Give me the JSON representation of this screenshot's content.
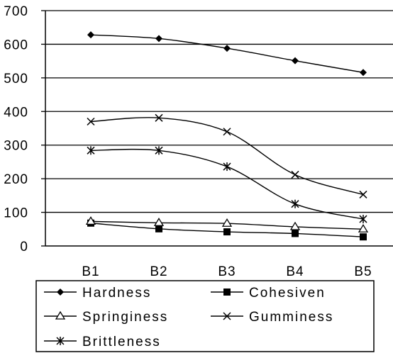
{
  "chart_data": {
    "type": "line",
    "title": "",
    "xlabel": "",
    "ylabel": "",
    "categories": [
      "B1",
      "B2",
      "B3",
      "B4",
      "B5"
    ],
    "ylim": [
      0,
      700
    ],
    "yticks": [
      0,
      100,
      200,
      300,
      400,
      500,
      600,
      700
    ],
    "grid": true,
    "legend_position": "bottom",
    "series": [
      {
        "name": "Hardness",
        "marker": "diamond",
        "values": [
          628,
          617,
          588,
          551,
          516
        ]
      },
      {
        "name": "Cohesiven",
        "marker": "square",
        "values": [
          68,
          51,
          42,
          37,
          27
        ]
      },
      {
        "name": "Springiness",
        "marker": "triangle",
        "values": [
          73,
          69,
          67,
          57,
          50
        ]
      },
      {
        "name": "Gumminess",
        "marker": "x",
        "values": [
          370,
          381,
          340,
          212,
          153
        ]
      },
      {
        "name": "Brittleness",
        "marker": "star",
        "values": [
          284,
          284,
          236,
          125,
          80
        ]
      }
    ]
  }
}
